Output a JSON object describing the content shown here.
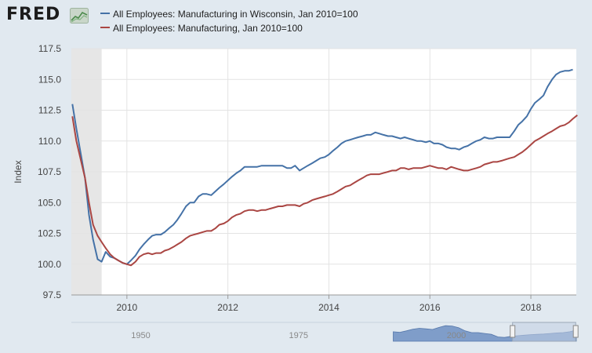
{
  "header": {
    "logo_text": "FRED",
    "logo_mark_icon": "fred-chart-logo-icon"
  },
  "colors": {
    "background": "#e1e9f0",
    "plot_background": "#ffffff",
    "recession_shade": "#e6e6e6",
    "wisconsin_series": "#4572a7",
    "us_series": "#aa4643",
    "navigator_fill": "#7f9dc9",
    "navigator_window": "#c3d0e3"
  },
  "chart_data": {
    "type": "line",
    "title": "",
    "xlabel": "",
    "ylabel": "Index",
    "xlim": [
      2008.9,
      2018.9
    ],
    "ylim": [
      97.5,
      117.5
    ],
    "grid": true,
    "legend_placement": "top-left",
    "x_ticks": [
      "2010",
      "2012",
      "2014",
      "2016",
      "2018"
    ],
    "y_ticks": [
      "97.5",
      "100.0",
      "102.5",
      "105.0",
      "107.5",
      "110.0",
      "112.5",
      "115.0",
      "117.5"
    ],
    "recession_shading": [
      [
        2008.9,
        2009.5
      ]
    ],
    "series": [
      {
        "name": "All Employees: Manufacturing in Wisconsin, Jan 2010=100",
        "points": [
          [
            2008.92,
            113.0
          ],
          [
            2009.0,
            111.0
          ],
          [
            2009.17,
            107.0
          ],
          [
            2009.25,
            104.0
          ],
          [
            2009.33,
            102.0
          ],
          [
            2009.42,
            100.4
          ],
          [
            2009.5,
            100.2
          ],
          [
            2009.58,
            101.0
          ],
          [
            2009.67,
            100.6
          ],
          [
            2009.75,
            100.5
          ],
          [
            2009.83,
            100.3
          ],
          [
            2009.92,
            100.1
          ],
          [
            2010.0,
            100.0
          ],
          [
            2010.08,
            100.3
          ],
          [
            2010.17,
            100.7
          ],
          [
            2010.25,
            101.2
          ],
          [
            2010.33,
            101.6
          ],
          [
            2010.42,
            102.0
          ],
          [
            2010.5,
            102.3
          ],
          [
            2010.58,
            102.4
          ],
          [
            2010.67,
            102.4
          ],
          [
            2010.75,
            102.6
          ],
          [
            2010.83,
            102.9
          ],
          [
            2010.92,
            103.2
          ],
          [
            2011.0,
            103.6
          ],
          [
            2011.08,
            104.1
          ],
          [
            2011.17,
            104.7
          ],
          [
            2011.25,
            105.0
          ],
          [
            2011.33,
            105.0
          ],
          [
            2011.42,
            105.5
          ],
          [
            2011.5,
            105.7
          ],
          [
            2011.58,
            105.7
          ],
          [
            2011.67,
            105.6
          ],
          [
            2011.75,
            105.9
          ],
          [
            2011.83,
            106.2
          ],
          [
            2011.92,
            106.5
          ],
          [
            2012.0,
            106.8
          ],
          [
            2012.08,
            107.1
          ],
          [
            2012.17,
            107.4
          ],
          [
            2012.25,
            107.6
          ],
          [
            2012.33,
            107.9
          ],
          [
            2012.42,
            107.9
          ],
          [
            2012.5,
            107.9
          ],
          [
            2012.58,
            107.9
          ],
          [
            2012.67,
            108.0
          ],
          [
            2012.75,
            108.0
          ],
          [
            2012.83,
            108.0
          ],
          [
            2012.92,
            108.0
          ],
          [
            2013.0,
            108.0
          ],
          [
            2013.08,
            108.0
          ],
          [
            2013.17,
            107.8
          ],
          [
            2013.25,
            107.8
          ],
          [
            2013.33,
            108.0
          ],
          [
            2013.42,
            107.6
          ],
          [
            2013.5,
            107.8
          ],
          [
            2013.58,
            108.0
          ],
          [
            2013.67,
            108.2
          ],
          [
            2013.75,
            108.4
          ],
          [
            2013.83,
            108.6
          ],
          [
            2013.92,
            108.7
          ],
          [
            2014.0,
            108.9
          ],
          [
            2014.08,
            109.2
          ],
          [
            2014.17,
            109.5
          ],
          [
            2014.25,
            109.8
          ],
          [
            2014.33,
            110.0
          ],
          [
            2014.42,
            110.1
          ],
          [
            2014.5,
            110.2
          ],
          [
            2014.58,
            110.3
          ],
          [
            2014.67,
            110.4
          ],
          [
            2014.75,
            110.5
          ],
          [
            2014.83,
            110.5
          ],
          [
            2014.92,
            110.7
          ],
          [
            2015.0,
            110.6
          ],
          [
            2015.08,
            110.5
          ],
          [
            2015.17,
            110.4
          ],
          [
            2015.25,
            110.4
          ],
          [
            2015.33,
            110.3
          ],
          [
            2015.42,
            110.2
          ],
          [
            2015.5,
            110.3
          ],
          [
            2015.58,
            110.2
          ],
          [
            2015.67,
            110.1
          ],
          [
            2015.75,
            110.0
          ],
          [
            2015.83,
            110.0
          ],
          [
            2015.92,
            109.9
          ],
          [
            2016.0,
            110.0
          ],
          [
            2016.08,
            109.8
          ],
          [
            2016.17,
            109.8
          ],
          [
            2016.25,
            109.7
          ],
          [
            2016.33,
            109.5
          ],
          [
            2016.42,
            109.4
          ],
          [
            2016.5,
            109.4
          ],
          [
            2016.58,
            109.3
          ],
          [
            2016.67,
            109.5
          ],
          [
            2016.75,
            109.6
          ],
          [
            2016.83,
            109.8
          ],
          [
            2016.92,
            110.0
          ],
          [
            2017.0,
            110.1
          ],
          [
            2017.08,
            110.3
          ],
          [
            2017.17,
            110.2
          ],
          [
            2017.25,
            110.2
          ],
          [
            2017.33,
            110.3
          ],
          [
            2017.42,
            110.3
          ],
          [
            2017.5,
            110.3
          ],
          [
            2017.58,
            110.3
          ],
          [
            2017.67,
            110.8
          ],
          [
            2017.75,
            111.3
          ],
          [
            2017.83,
            111.6
          ],
          [
            2017.92,
            112.0
          ],
          [
            2018.0,
            112.6
          ],
          [
            2018.08,
            113.1
          ],
          [
            2018.17,
            113.4
          ],
          [
            2018.25,
            113.7
          ],
          [
            2018.33,
            114.4
          ],
          [
            2018.42,
            115.0
          ],
          [
            2018.5,
            115.4
          ],
          [
            2018.58,
            115.6
          ],
          [
            2018.67,
            115.7
          ],
          [
            2018.75,
            115.7
          ],
          [
            2018.83,
            115.8
          ]
        ]
      },
      {
        "name": "All Employees: Manufacturing, Jan 2010=100",
        "points": [
          [
            2008.92,
            112.0
          ],
          [
            2009.0,
            110.0
          ],
          [
            2009.17,
            107.0
          ],
          [
            2009.25,
            105.0
          ],
          [
            2009.33,
            103.2
          ],
          [
            2009.42,
            102.3
          ],
          [
            2009.5,
            101.8
          ],
          [
            2009.58,
            101.3
          ],
          [
            2009.67,
            100.8
          ],
          [
            2009.75,
            100.5
          ],
          [
            2009.83,
            100.3
          ],
          [
            2009.92,
            100.1
          ],
          [
            2010.0,
            100.0
          ],
          [
            2010.08,
            99.9
          ],
          [
            2010.17,
            100.2
          ],
          [
            2010.25,
            100.6
          ],
          [
            2010.33,
            100.8
          ],
          [
            2010.42,
            100.9
          ],
          [
            2010.5,
            100.8
          ],
          [
            2010.58,
            100.9
          ],
          [
            2010.67,
            100.9
          ],
          [
            2010.75,
            101.1
          ],
          [
            2010.83,
            101.2
          ],
          [
            2010.92,
            101.4
          ],
          [
            2011.0,
            101.6
          ],
          [
            2011.08,
            101.8
          ],
          [
            2011.17,
            102.1
          ],
          [
            2011.25,
            102.3
          ],
          [
            2011.33,
            102.4
          ],
          [
            2011.42,
            102.5
          ],
          [
            2011.5,
            102.6
          ],
          [
            2011.58,
            102.7
          ],
          [
            2011.67,
            102.7
          ],
          [
            2011.75,
            102.9
          ],
          [
            2011.83,
            103.2
          ],
          [
            2011.92,
            103.3
          ],
          [
            2012.0,
            103.5
          ],
          [
            2012.08,
            103.8
          ],
          [
            2012.17,
            104.0
          ],
          [
            2012.25,
            104.1
          ],
          [
            2012.33,
            104.3
          ],
          [
            2012.42,
            104.4
          ],
          [
            2012.5,
            104.4
          ],
          [
            2012.58,
            104.3
          ],
          [
            2012.67,
            104.4
          ],
          [
            2012.75,
            104.4
          ],
          [
            2012.83,
            104.5
          ],
          [
            2012.92,
            104.6
          ],
          [
            2013.0,
            104.7
          ],
          [
            2013.08,
            104.7
          ],
          [
            2013.17,
            104.8
          ],
          [
            2013.25,
            104.8
          ],
          [
            2013.33,
            104.8
          ],
          [
            2013.42,
            104.7
          ],
          [
            2013.5,
            104.9
          ],
          [
            2013.58,
            105.0
          ],
          [
            2013.67,
            105.2
          ],
          [
            2013.75,
            105.3
          ],
          [
            2013.83,
            105.4
          ],
          [
            2013.92,
            105.5
          ],
          [
            2014.0,
            105.6
          ],
          [
            2014.08,
            105.7
          ],
          [
            2014.17,
            105.9
          ],
          [
            2014.25,
            106.1
          ],
          [
            2014.33,
            106.3
          ],
          [
            2014.42,
            106.4
          ],
          [
            2014.5,
            106.6
          ],
          [
            2014.58,
            106.8
          ],
          [
            2014.67,
            107.0
          ],
          [
            2014.75,
            107.2
          ],
          [
            2014.83,
            107.3
          ],
          [
            2014.92,
            107.3
          ],
          [
            2015.0,
            107.3
          ],
          [
            2015.08,
            107.4
          ],
          [
            2015.17,
            107.5
          ],
          [
            2015.25,
            107.6
          ],
          [
            2015.33,
            107.6
          ],
          [
            2015.42,
            107.8
          ],
          [
            2015.5,
            107.8
          ],
          [
            2015.58,
            107.7
          ],
          [
            2015.67,
            107.8
          ],
          [
            2015.75,
            107.8
          ],
          [
            2015.83,
            107.8
          ],
          [
            2015.92,
            107.9
          ],
          [
            2016.0,
            108.0
          ],
          [
            2016.08,
            107.9
          ],
          [
            2016.17,
            107.8
          ],
          [
            2016.25,
            107.8
          ],
          [
            2016.33,
            107.7
          ],
          [
            2016.42,
            107.9
          ],
          [
            2016.5,
            107.8
          ],
          [
            2016.58,
            107.7
          ],
          [
            2016.67,
            107.6
          ],
          [
            2016.75,
            107.6
          ],
          [
            2016.83,
            107.7
          ],
          [
            2016.92,
            107.8
          ],
          [
            2017.0,
            107.9
          ],
          [
            2017.08,
            108.1
          ],
          [
            2017.17,
            108.2
          ],
          [
            2017.25,
            108.3
          ],
          [
            2017.33,
            108.3
          ],
          [
            2017.42,
            108.4
          ],
          [
            2017.5,
            108.5
          ],
          [
            2017.58,
            108.6
          ],
          [
            2017.67,
            108.7
          ],
          [
            2017.75,
            108.9
          ],
          [
            2017.83,
            109.1
          ],
          [
            2017.92,
            109.4
          ],
          [
            2018.0,
            109.7
          ],
          [
            2018.08,
            110.0
          ],
          [
            2018.17,
            110.2
          ],
          [
            2018.25,
            110.4
          ],
          [
            2018.33,
            110.6
          ],
          [
            2018.42,
            110.8
          ],
          [
            2018.5,
            111.0
          ],
          [
            2018.58,
            111.2
          ],
          [
            2018.67,
            111.3
          ],
          [
            2018.75,
            111.5
          ],
          [
            2018.83,
            111.8
          ],
          [
            2018.92,
            112.1
          ]
        ]
      }
    ]
  },
  "navigator": {
    "x_ticks": [
      "1950",
      "1975",
      "2000"
    ],
    "range": [
      1939,
      2019
    ],
    "selected_range": [
      2008.9,
      2018.9
    ],
    "data_start": 1990,
    "profile": [
      0.55,
      0.52,
      0.6,
      0.7,
      0.75,
      0.72,
      0.68,
      0.8,
      0.9,
      0.88,
      0.78,
      0.6,
      0.5,
      0.5,
      0.45,
      0.4,
      0.25,
      0.22,
      0.28,
      0.32,
      0.35,
      0.38,
      0.4,
      0.42,
      0.45,
      0.48,
      0.5,
      0.55,
      0.65
    ]
  }
}
